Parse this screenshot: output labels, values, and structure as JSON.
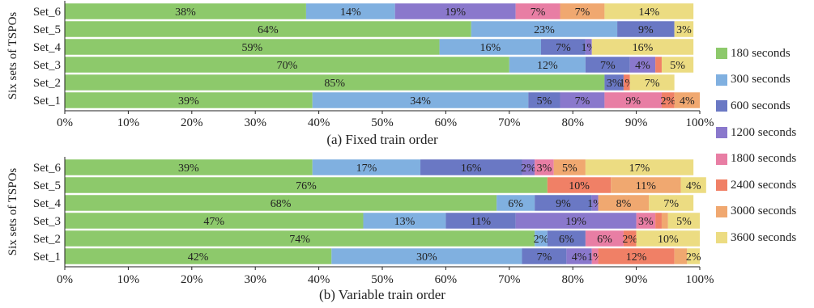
{
  "chart_data": [
    {
      "type": "bar",
      "orientation": "horizontal",
      "stacked": true,
      "title": "(a) Fixed train order",
      "ylabel": "Six sets of TSPOs",
      "xlabel": "",
      "xlim": [
        0,
        100
      ],
      "x_ticks": [
        "0%",
        "10%",
        "20%",
        "30%",
        "40%",
        "50%",
        "60%",
        "70%",
        "80%",
        "90%",
        "100%"
      ],
      "categories": [
        "Set_6",
        "Set_5",
        "Set_4",
        "Set_3",
        "Set_2",
        "Set_1"
      ],
      "series": [
        {
          "name": "180 seconds",
          "values": [
            38,
            64,
            59,
            70,
            85,
            39
          ]
        },
        {
          "name": "300 seconds",
          "values": [
            14,
            23,
            16,
            12,
            0,
            34
          ]
        },
        {
          "name": "600 seconds",
          "values": [
            0,
            9,
            7,
            7,
            3,
            5
          ]
        },
        {
          "name": "1200 seconds",
          "values": [
            19,
            0,
            1,
            4,
            0,
            7
          ]
        },
        {
          "name": "1800 seconds",
          "values": [
            7,
            0,
            0,
            0,
            0,
            9
          ]
        },
        {
          "name": "2400 seconds",
          "values": [
            0,
            0,
            0,
            1,
            1,
            2
          ]
        },
        {
          "name": "3000 seconds",
          "values": [
            7,
            0,
            0,
            0,
            0,
            4
          ]
        },
        {
          "name": "3600 seconds",
          "values": [
            14,
            3,
            16,
            5,
            7,
            0
          ]
        }
      ],
      "data_labels": [
        [
          "38%",
          "14%",
          "",
          "19%",
          "7%",
          "",
          "7%",
          "14%"
        ],
        [
          "64%",
          "23%",
          "9%",
          "",
          "",
          "",
          "",
          "3%"
        ],
        [
          "59%",
          "16%",
          "7%",
          "1%",
          "",
          "",
          "",
          "16%"
        ],
        [
          "70%",
          "12%",
          "7%",
          "4%",
          "",
          "",
          "",
          "5%"
        ],
        [
          "85%",
          "",
          "3%",
          "",
          "",
          "1%",
          "",
          "7%"
        ],
        [
          "39%",
          "34%",
          "5%",
          "7%",
          "9%",
          "2%",
          "4%",
          ""
        ]
      ],
      "grid": false
    },
    {
      "type": "bar",
      "orientation": "horizontal",
      "stacked": true,
      "title": "(b) Variable train order",
      "ylabel": "Six sets of TSPOs",
      "xlabel": "",
      "xlim": [
        0,
        100
      ],
      "x_ticks": [
        "0%",
        "10%",
        "20%",
        "30%",
        "40%",
        "50%",
        "60%",
        "70%",
        "80%",
        "90%",
        "100%"
      ],
      "categories": [
        "Set_6",
        "Set_5",
        "Set_4",
        "Set_3",
        "Set_2",
        "Set_1"
      ],
      "series": [
        {
          "name": "180 seconds",
          "values": [
            39,
            76,
            68,
            47,
            74,
            42
          ]
        },
        {
          "name": "300 seconds",
          "values": [
            17,
            0,
            6,
            13,
            2,
            30
          ]
        },
        {
          "name": "600 seconds",
          "values": [
            16,
            0,
            9,
            11,
            6,
            7
          ]
        },
        {
          "name": "1200 seconds",
          "values": [
            2,
            0,
            1,
            19,
            0,
            4
          ]
        },
        {
          "name": "1800 seconds",
          "values": [
            3,
            0,
            0,
            3,
            6,
            1
          ]
        },
        {
          "name": "2400 seconds",
          "values": [
            0,
            10,
            0,
            1,
            2,
            12
          ]
        },
        {
          "name": "3000 seconds",
          "values": [
            5,
            11,
            8,
            1,
            0,
            2
          ]
        },
        {
          "name": "3600 seconds",
          "values": [
            17,
            4,
            7,
            5,
            10,
            2
          ]
        }
      ],
      "data_labels": [
        [
          "39%",
          "17%",
          "16%",
          "2%",
          "3%",
          "",
          "5%",
          "17%"
        ],
        [
          "76%",
          "",
          "",
          "",
          "",
          "10%",
          "11%",
          "4%"
        ],
        [
          "68%",
          "6%",
          "9%",
          "1%",
          "",
          "",
          "8%",
          "7%"
        ],
        [
          "47%",
          "13%",
          "11%",
          "19%",
          "3%",
          "",
          "",
          "5%"
        ],
        [
          "74%",
          "2%",
          "6%",
          "",
          "6%",
          "2%",
          "",
          "10%"
        ],
        [
          "42%",
          "30%",
          "7%",
          "4%",
          "1%",
          "12%",
          "",
          "2%"
        ]
      ],
      "grid": false
    }
  ],
  "legend": {
    "placement": "right",
    "items": [
      "180 seconds",
      "300 seconds",
      "600 seconds",
      "1200 seconds",
      "1800 seconds",
      "2400 seconds",
      "3000 seconds",
      "3600 seconds"
    ],
    "colors": [
      "#8dc96b",
      "#80b0e0",
      "#6a78c4",
      "#8a78cc",
      "#e87ea4",
      "#f08066",
      "#f0a870",
      "#ecdc82"
    ]
  }
}
